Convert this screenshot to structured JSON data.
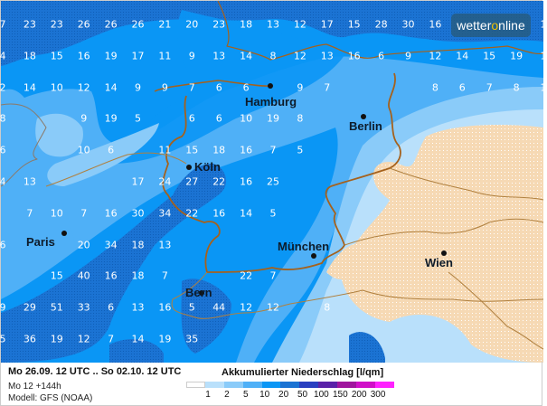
{
  "map": {
    "colors": {
      "dry": "#f6d9b4",
      "lt1": "#b9e0fb",
      "lt2": "#8acbf9",
      "lt5": "#4fb0f7",
      "lt10": "#0a96f5",
      "lt20": "#1b73d3",
      "border_country": "#a5611c",
      "border_state": "#b0803f"
    },
    "values": [
      [
        "7",
        "23",
        "23",
        "26",
        "26",
        "26",
        "21",
        "20",
        "23",
        "18",
        "13",
        "12",
        "17",
        "15",
        "28",
        "30",
        "16",
        null,
        null,
        null,
        "1"
      ],
      [
        "4",
        "18",
        "15",
        "16",
        "19",
        "17",
        "11",
        "9",
        "13",
        "14",
        "8",
        "12",
        "13",
        "16",
        "6",
        "9",
        "12",
        "14",
        "15",
        "19",
        "1"
      ],
      [
        "2",
        "14",
        "10",
        "12",
        "14",
        "9",
        "9",
        "7",
        "6",
        "6",
        null,
        "9",
        "7",
        null,
        null,
        null,
        "8",
        "6",
        "7",
        "8",
        "1"
      ],
      [
        "8",
        null,
        null,
        "9",
        "19",
        "5",
        null,
        "6",
        "6",
        "10",
        "19",
        "8",
        null,
        null,
        null,
        null,
        null,
        null,
        null,
        null,
        null
      ],
      [
        "6",
        null,
        null,
        "10",
        "6",
        null,
        "11",
        "15",
        "18",
        "16",
        "7",
        "5",
        null,
        null,
        null,
        null,
        null,
        null,
        null,
        null,
        null
      ],
      [
        "4",
        "13",
        null,
        null,
        null,
        "17",
        "24",
        "27",
        "22",
        "16",
        "25",
        null,
        null,
        null,
        null,
        null,
        null,
        null,
        null,
        null,
        null
      ],
      [
        null,
        "7",
        "10",
        "7",
        "16",
        "30",
        "34",
        "22",
        "16",
        "14",
        "5",
        null,
        null,
        null,
        null,
        null,
        null,
        null,
        null,
        null,
        null
      ],
      [
        "6",
        null,
        null,
        "20",
        "34",
        "18",
        "13",
        null,
        null,
        null,
        null,
        null,
        null,
        null,
        null,
        null,
        null,
        null,
        null,
        null,
        null
      ],
      [
        null,
        null,
        "15",
        "40",
        "16",
        "18",
        "7",
        null,
        null,
        "22",
        "7",
        null,
        null,
        null,
        null,
        null,
        null,
        null,
        null,
        null,
        null
      ],
      [
        "9",
        "29",
        "51",
        "33",
        "6",
        "13",
        "16",
        "5",
        "44",
        "12",
        "12",
        null,
        "8",
        null,
        null,
        null,
        null,
        null,
        null,
        null,
        null
      ],
      [
        "5",
        "36",
        "19",
        "12",
        "7",
        "14",
        "19",
        "35",
        null,
        null,
        null,
        null,
        null,
        null,
        null,
        null,
        null,
        null,
        null,
        null,
        null
      ]
    ],
    "cities": [
      {
        "name": "Hamburg"
      },
      {
        "name": "Berlin"
      },
      {
        "name": "Köln"
      },
      {
        "name": "Paris"
      },
      {
        "name": "München"
      },
      {
        "name": "Wien"
      },
      {
        "name": "Bern"
      }
    ]
  },
  "logo": {
    "text_a": "wetter",
    "text_o": "o",
    "text_b": "nline"
  },
  "footer": {
    "period": "Mo 26.09. 12 UTC .. So 02.10. 12 UTC",
    "run": "Mo 12 +144h",
    "model": "Modell: GFS (NOAA)",
    "legend_title": "Akkumulierter Niederschlag [l/qm]",
    "legend_colors": [
      "#ffffff",
      "#b9e0fb",
      "#8acbf9",
      "#4fb0f7",
      "#0a96f5",
      "#1b73d3",
      "#2a3fc0",
      "#5a22a8",
      "#a0169e",
      "#d010c8",
      "#ff22ff"
    ],
    "legend_labels": [
      "1",
      "2",
      "5",
      "10",
      "20",
      "50",
      "100",
      "150",
      "200",
      "300"
    ]
  }
}
